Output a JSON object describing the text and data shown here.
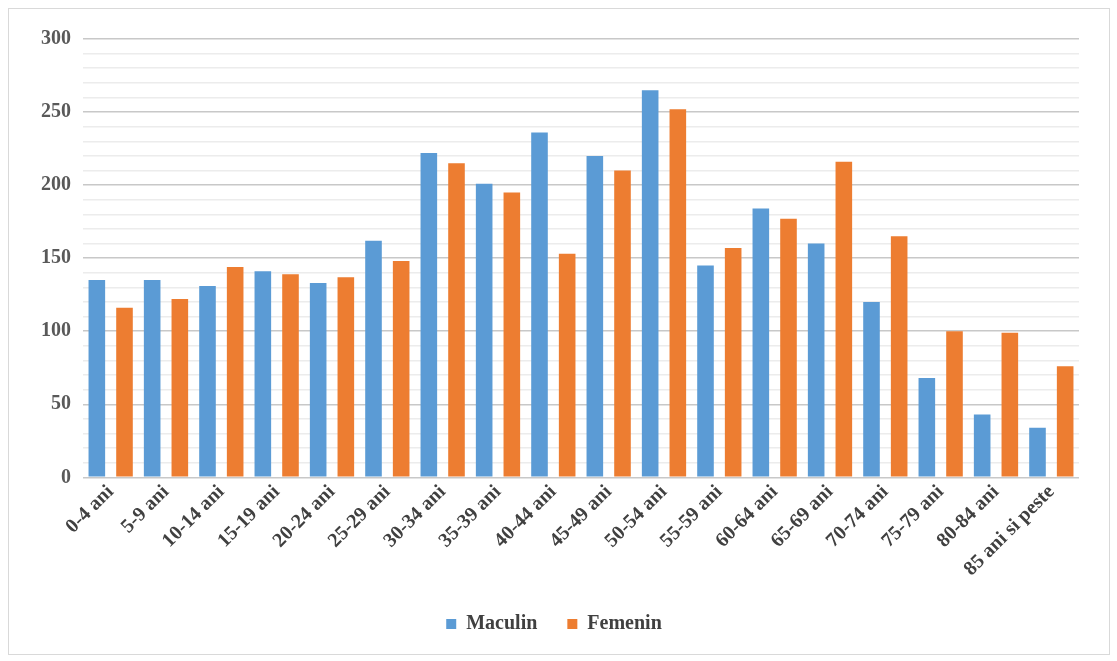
{
  "chart_data": {
    "type": "bar",
    "categories": [
      "0-4 ani",
      "5-9 ani",
      "10-14 ani",
      "15-19 ani",
      "20-24 ani",
      "25-29 ani",
      "30-34 ani",
      "35-39 ani",
      "40-44 ani",
      "45-49 ani",
      "50-54 ani",
      "55-59 ani",
      "60-64 ani",
      "65-69 ani",
      "70-74 ani",
      "75-79 ani",
      "80-84 ani",
      "85 ani si peste"
    ],
    "series": [
      {
        "name": "Maculin",
        "color": "#5b9bd5",
        "values": [
          135,
          135,
          131,
          141,
          133,
          162,
          222,
          201,
          236,
          220,
          265,
          145,
          184,
          160,
          120,
          68,
          43,
          34
        ]
      },
      {
        "name": "Femenin",
        "color": "#ed7d31",
        "values": [
          116,
          122,
          144,
          139,
          137,
          148,
          215,
          195,
          153,
          210,
          252,
          157,
          177,
          216,
          165,
          100,
          99,
          76
        ]
      }
    ],
    "ylim": [
      0,
      300
    ],
    "yticks": [
      0,
      {
        "value": 10,
        "label": null
      },
      {
        "value": 20,
        "label": null
      },
      {
        "value": 30,
        "label": null
      },
      {
        "value": 40,
        "label": null
      },
      50,
      {
        "value": 60,
        "label": null
      },
      {
        "value": 70,
        "label": null
      },
      {
        "value": 80,
        "label": null
      },
      {
        "value": 90,
        "label": null
      },
      100,
      {
        "value": 110,
        "label": null
      },
      {
        "value": 120,
        "label": null
      },
      {
        "value": 130,
        "label": null
      },
      {
        "value": 140,
        "label": null
      },
      150,
      {
        "value": 160,
        "label": null
      },
      {
        "value": 170,
        "label": null
      },
      {
        "value": 180,
        "label": null
      },
      {
        "value": 190,
        "label": null
      },
      200,
      {
        "value": 210,
        "label": null
      },
      {
        "value": 220,
        "label": null
      },
      {
        "value": 230,
        "label": null
      },
      {
        "value": 240,
        "label": null
      },
      250,
      {
        "value": 260,
        "label": null
      },
      {
        "value": 270,
        "label": null
      },
      {
        "value": 280,
        "label": null
      },
      {
        "value": 290,
        "label": null
      },
      300
    ],
    "grid": "y",
    "legend": "bottom"
  }
}
